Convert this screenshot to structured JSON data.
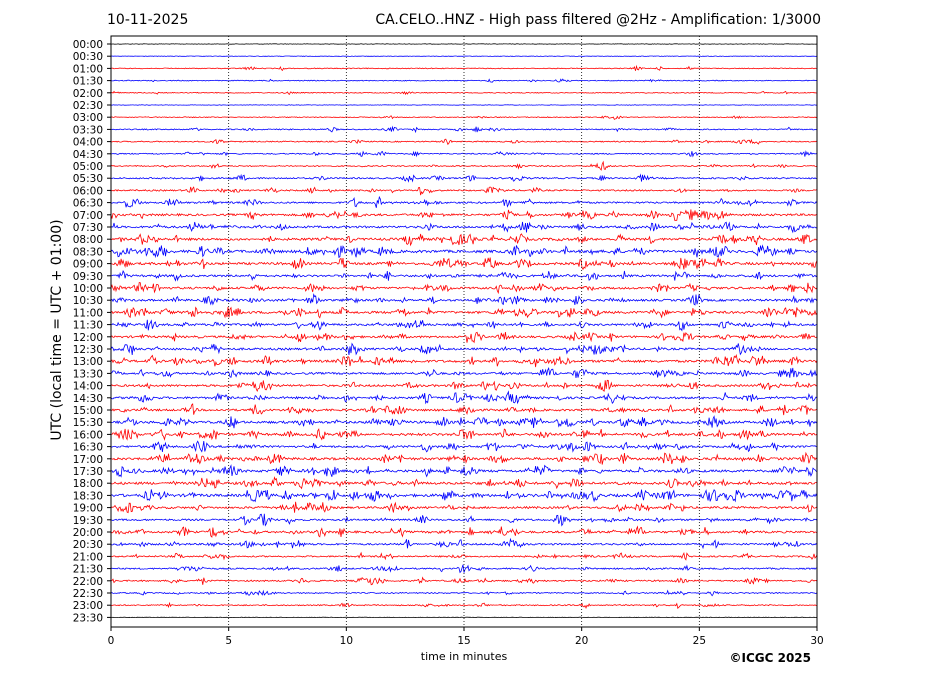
{
  "date": "10-11-2025",
  "title": "CA.CELO..HNZ - High pass filtered @2Hz - Amplification: 1/3000",
  "copyright": "©ICGC 2025",
  "colors": {
    "trace_a": "#ff0000",
    "trace_b": "#0000ff",
    "grid": "#000000"
  },
  "chart_data": {
    "type": "line",
    "title": "CA.CELO..HNZ - High pass filtered @2Hz - Amplification: 1/3000",
    "xlabel": "time in minutes",
    "ylabel": "UTC (local time = UTC + 01:00)",
    "xlim": [
      0,
      30
    ],
    "x_ticks": [
      "0",
      "5",
      "10",
      "15",
      "20",
      "25",
      "30"
    ],
    "vertical_gridlines_minutes": [
      5,
      10,
      15,
      20,
      25
    ],
    "rows": [
      "00:00",
      "00:30",
      "01:00",
      "01:30",
      "02:00",
      "02:30",
      "03:00",
      "03:30",
      "04:00",
      "04:30",
      "05:00",
      "05:30",
      "06:00",
      "06:30",
      "07:00",
      "07:30",
      "08:00",
      "08:30",
      "09:00",
      "09:30",
      "10:00",
      "10:30",
      "11:00",
      "11:30",
      "12:00",
      "12:30",
      "13:00",
      "13:30",
      "14:00",
      "14:30",
      "15:00",
      "15:30",
      "16:00",
      "16:30",
      "17:00",
      "17:30",
      "18:00",
      "18:30",
      "19:00",
      "19:30",
      "20:00",
      "20:30",
      "21:00",
      "21:30",
      "22:00",
      "22:30",
      "23:00",
      "23:30"
    ],
    "row_colors": [
      "black",
      "blue",
      "red",
      "blue",
      "red",
      "blue",
      "red",
      "blue",
      "red",
      "blue",
      "red",
      "blue",
      "red",
      "blue",
      "red",
      "blue",
      "red",
      "blue",
      "red",
      "blue",
      "red",
      "blue",
      "red",
      "blue",
      "red",
      "blue",
      "red",
      "blue",
      "red",
      "blue",
      "red",
      "blue",
      "red",
      "blue",
      "red",
      "blue",
      "red",
      "blue",
      "red",
      "blue",
      "red",
      "blue",
      "red",
      "blue",
      "red",
      "blue",
      "red",
      "black"
    ],
    "activity_level": [
      0,
      0,
      1,
      1,
      1,
      0,
      1,
      2,
      2,
      2,
      2,
      3,
      3,
      4,
      5,
      5,
      6,
      7,
      6,
      5,
      5,
      5,
      6,
      5,
      5,
      5,
      6,
      5,
      5,
      5,
      5,
      6,
      6,
      5,
      6,
      6,
      6,
      7,
      5,
      4,
      5,
      4,
      3,
      3,
      3,
      2,
      2,
      0
    ]
  }
}
